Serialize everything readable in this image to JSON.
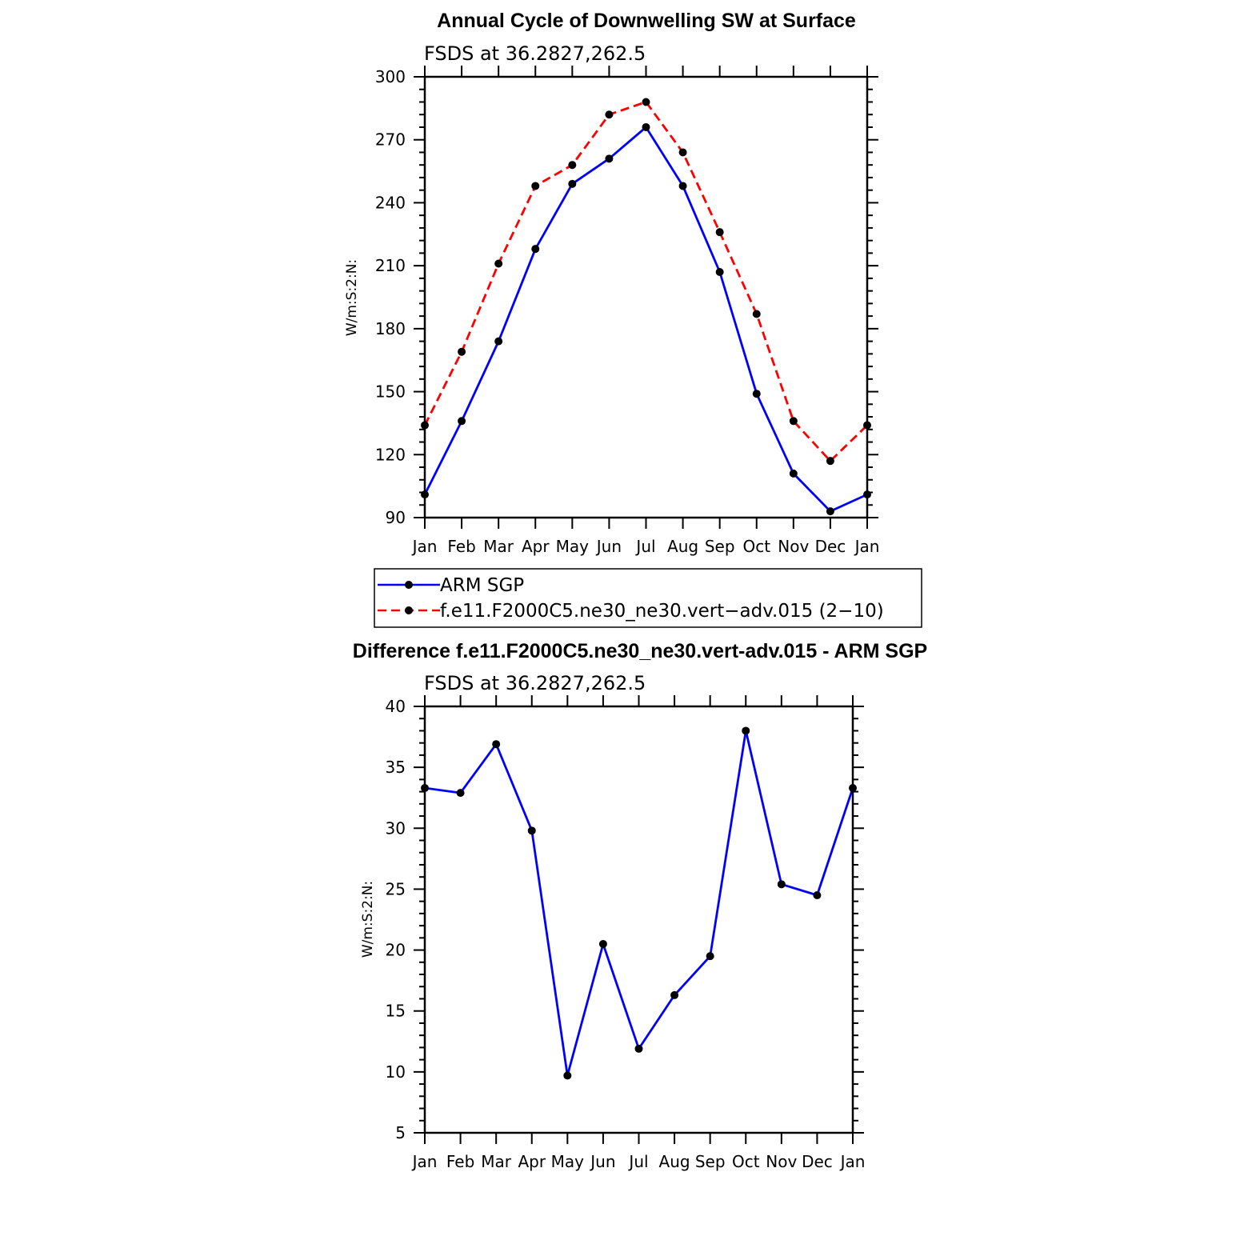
{
  "chart_data": [
    {
      "type": "line",
      "title": "Annual Cycle of Downwelling SW at Surface",
      "subtitle": "FSDS at 36.2827,262.5",
      "ylabel": "W/m:S:2:N:",
      "xlabel": "",
      "categories": [
        "Jan",
        "Feb",
        "Mar",
        "Apr",
        "May",
        "Jun",
        "Jul",
        "Aug",
        "Sep",
        "Oct",
        "Nov",
        "Dec",
        "Jan"
      ],
      "ylim": [
        90,
        300
      ],
      "yticks": [
        90,
        120,
        150,
        180,
        210,
        240,
        270,
        300
      ],
      "grid": false,
      "legend_position": "below",
      "series": [
        {
          "name": "ARM SGP",
          "color": "#0000ff",
          "dash": "solid",
          "values": [
            101,
            136,
            174,
            218,
            249,
            261,
            276,
            248,
            207,
            149,
            111,
            93,
            101
          ]
        },
        {
          "name": "f.e11.F2000C5.ne30_ne30.vert−adv.015 (2−10)",
          "color": "#ff0000",
          "dash": "dashed",
          "values": [
            134,
            169,
            211,
            248,
            258,
            282,
            288,
            264,
            226,
            187,
            136,
            117,
            134
          ]
        }
      ]
    },
    {
      "type": "line",
      "title": "Difference f.e11.F2000C5.ne30_ne30.vert-adv.015 - ARM SGP",
      "subtitle": "FSDS at 36.2827,262.5",
      "ylabel": "W/m:S:2:N:",
      "xlabel": "",
      "categories": [
        "Jan",
        "Feb",
        "Mar",
        "Apr",
        "May",
        "Jun",
        "Jul",
        "Aug",
        "Sep",
        "Oct",
        "Nov",
        "Dec",
        "Jan"
      ],
      "ylim": [
        5,
        40
      ],
      "yticks": [
        5,
        10,
        15,
        20,
        25,
        30,
        35,
        40
      ],
      "grid": false,
      "series": [
        {
          "color": "#0000ff",
          "dash": "solid",
          "values": [
            33.3,
            32.9,
            36.9,
            29.8,
            9.7,
            20.5,
            11.9,
            16.3,
            19.5,
            38.0,
            25.4,
            24.5,
            33.3
          ]
        }
      ]
    }
  ]
}
